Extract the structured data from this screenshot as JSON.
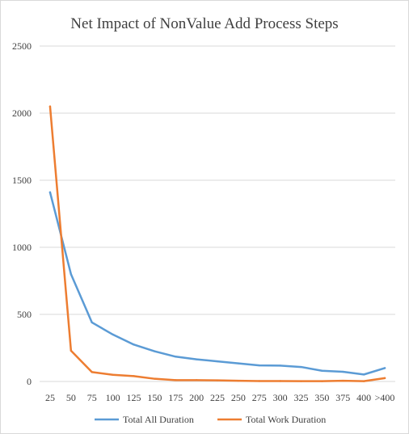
{
  "chart_data": {
    "type": "line",
    "title": "Net Impact of NonValue Add Process Steps",
    "xlabel": "",
    "ylabel": "",
    "categories": [
      "25",
      "50",
      "75",
      "100",
      "125",
      "150",
      "175",
      "200",
      "225",
      "250",
      "275",
      "300",
      "325",
      "350",
      "375",
      "400",
      ">400"
    ],
    "ylim": [
      0,
      2500
    ],
    "yticks": [
      0,
      500,
      1000,
      1500,
      2000,
      2500
    ],
    "grid": true,
    "legend_position": "bottom",
    "series": [
      {
        "name": "Total All Duration",
        "color": "#5b9bd5",
        "values": [
          1410,
          800,
          440,
          350,
          275,
          225,
          185,
          165,
          150,
          135,
          120,
          118,
          108,
          80,
          72,
          52,
          100
        ]
      },
      {
        "name": "Total Work Duration",
        "color": "#ed7d31",
        "values": [
          2050,
          230,
          70,
          50,
          40,
          20,
          10,
          10,
          8,
          5,
          3,
          3,
          2,
          2,
          5,
          2,
          25
        ]
      }
    ]
  }
}
